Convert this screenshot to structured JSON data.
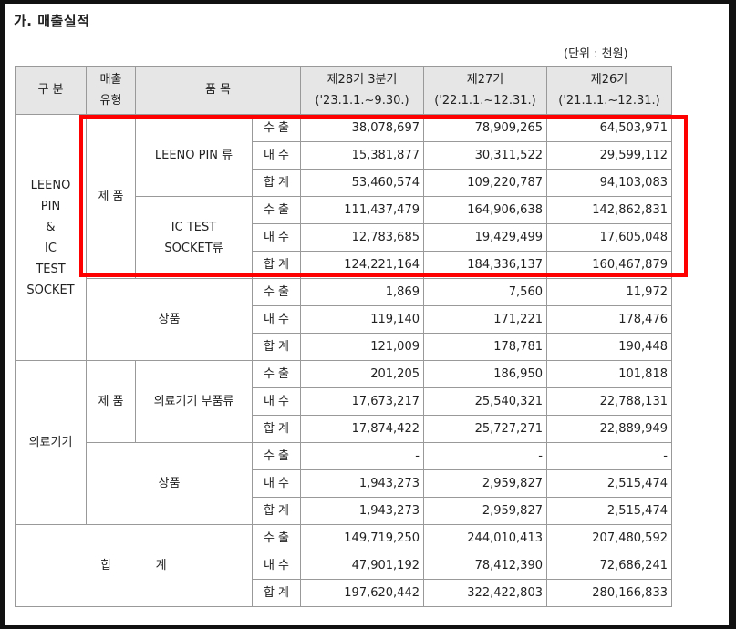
{
  "section_title": "가. 매출실적",
  "unit_note": "(단위 : 천원)",
  "header": {
    "category": "구 분",
    "sales_type_1": "매출",
    "sales_type_2": "유형",
    "item": "품 목",
    "col1_1": "제28기 3분기",
    "col1_2": "('23.1.1.~9.30.)",
    "col2_1": "제27기",
    "col2_2": "('22.1.1.~12.31.)",
    "col3_1": "제26기",
    "col3_2": "('21.1.1.~12.31.)"
  },
  "labels": {
    "leeno_1": "LEENO",
    "leeno_2": "PIN",
    "leeno_3": "&",
    "leeno_4": "IC",
    "leeno_5": "TEST",
    "leeno_6": "SOCKET",
    "product": "제 품",
    "merch": "상품",
    "leeno_pin": "LEENO PIN 류",
    "ic_test_1": "IC TEST",
    "ic_test_2": "SOCKET류",
    "medical": "의료기기",
    "medical_parts": "의료기기 부품류",
    "total_1": "합",
    "total_2": "계",
    "export": "수 출",
    "domestic": "내 수",
    "sum": "합 계"
  },
  "rows": {
    "r0": [
      "38,078,697",
      "78,909,265",
      "64,503,971"
    ],
    "r1": [
      "15,381,877",
      "30,311,522",
      "29,599,112"
    ],
    "r2": [
      "53,460,574",
      "109,220,787",
      "94,103,083"
    ],
    "r3": [
      "111,437,479",
      "164,906,638",
      "142,862,831"
    ],
    "r4": [
      "12,783,685",
      "19,429,499",
      "17,605,048"
    ],
    "r5": [
      "124,221,164",
      "184,336,137",
      "160,467,879"
    ],
    "r6": [
      "1,869",
      "7,560",
      "11,972"
    ],
    "r7": [
      "119,140",
      "171,221",
      "178,476"
    ],
    "r8": [
      "121,009",
      "178,781",
      "190,448"
    ],
    "r9": [
      "201,205",
      "186,950",
      "101,818"
    ],
    "r10": [
      "17,673,217",
      "25,540,321",
      "22,788,131"
    ],
    "r11": [
      "17,874,422",
      "25,727,271",
      "22,889,949"
    ],
    "r12": [
      "-",
      "-",
      "-"
    ],
    "r13": [
      "1,943,273",
      "2,959,827",
      "2,515,474"
    ],
    "r14": [
      "1,943,273",
      "2,959,827",
      "2,515,474"
    ],
    "r15": [
      "149,719,250",
      "244,010,413",
      "207,480,592"
    ],
    "r16": [
      "47,901,192",
      "78,412,390",
      "72,686,241"
    ],
    "r17": [
      "197,620,442",
      "322,422,803",
      "280,166,833"
    ]
  }
}
